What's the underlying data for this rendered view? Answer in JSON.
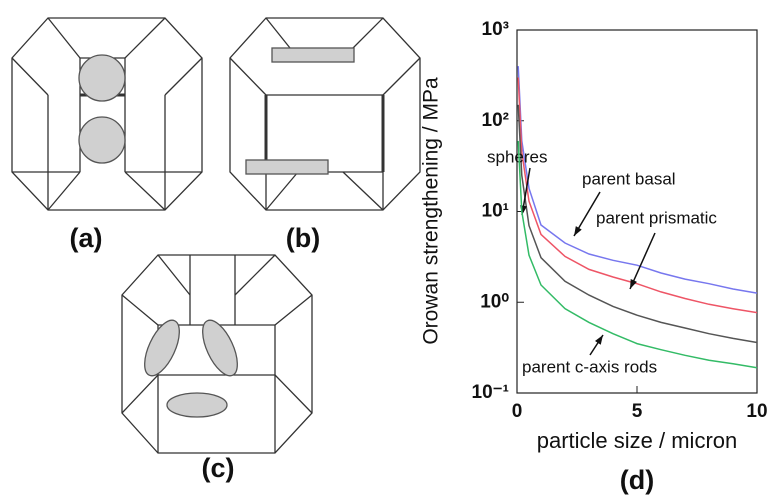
{
  "panels": {
    "a": "(a)",
    "b": "(b)",
    "c": "(c)",
    "d": "(d)"
  },
  "chart_data": {
    "type": "line",
    "xlabel": "particle size / micron",
    "ylabel": "Orowan strengthening / MPa",
    "x": [
      0.05,
      0.2,
      0.5,
      1,
      2,
      3,
      4,
      5,
      6,
      7,
      8,
      9,
      10
    ],
    "series": [
      {
        "name": "parent basal",
        "color": "#7777ee",
        "values": [
          400,
          60,
          18,
          7.1,
          4.5,
          3.4,
          2.9,
          2.56,
          2.1,
          1.8,
          1.6,
          1.4,
          1.26
        ]
      },
      {
        "name": "parent prismatic",
        "color": "#ee5566",
        "values": [
          300,
          45,
          13,
          5.6,
          3.2,
          2.3,
          1.9,
          1.6,
          1.3,
          1.1,
          0.95,
          0.85,
          0.77
        ]
      },
      {
        "name": "spheres",
        "color": "#555555",
        "values": [
          150,
          25,
          7,
          3.1,
          1.7,
          1.2,
          0.9,
          0.72,
          0.6,
          0.52,
          0.45,
          0.4,
          0.36
        ]
      },
      {
        "name": "parent c-axis rods",
        "color": "#33bb66",
        "values": [
          60,
          10,
          3.3,
          1.55,
          0.85,
          0.6,
          0.45,
          0.35,
          0.3,
          0.26,
          0.23,
          0.21,
          0.19
        ]
      }
    ],
    "xlim": [
      0,
      10
    ],
    "xticks": [
      0,
      5,
      10
    ],
    "ylim": [
      0.1,
      1000
    ],
    "log_y": true,
    "yticks": [
      {
        "value": 0.1,
        "label": "10⁻¹"
      },
      {
        "value": 1,
        "label": "10⁰"
      },
      {
        "value": 10,
        "label": "10¹"
      },
      {
        "value": 100,
        "label": "10²"
      },
      {
        "value": 1000,
        "label": "10³"
      }
    ]
  }
}
